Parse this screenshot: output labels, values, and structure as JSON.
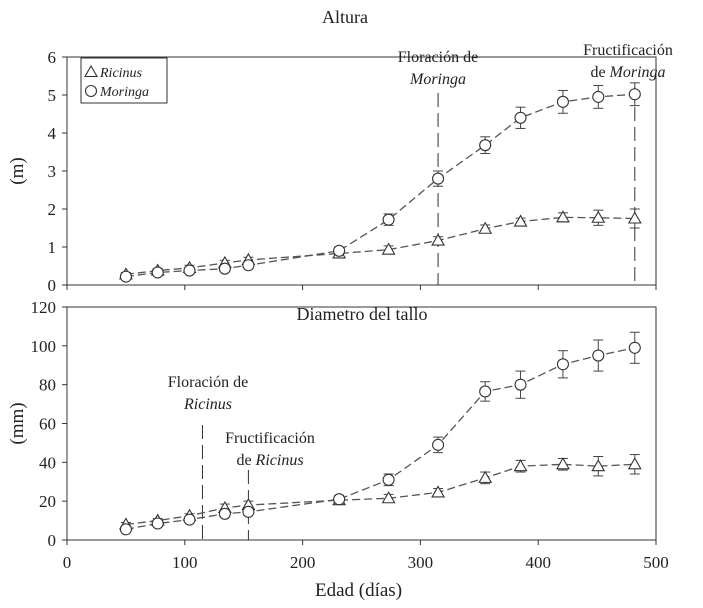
{
  "chart_data": [
    {
      "type": "line",
      "title": "Altura",
      "ylabel": "(m)",
      "xlabel": "",
      "xlim": [
        0,
        500
      ],
      "ylim": [
        0,
        6
      ],
      "xticks": [
        "0",
        "100",
        "200",
        "300",
        "400",
        "500"
      ],
      "yticks": [
        "0",
        "1",
        "2",
        "3",
        "4",
        "5",
        "6"
      ],
      "grid": false,
      "legend_position": "top-left",
      "series": [
        {
          "name": "Ricinus",
          "marker": "triangle",
          "points": [
            [
              50,
              0.28
            ],
            [
              77,
              0.38
            ],
            [
              104,
              0.45
            ],
            [
              134,
              0.58
            ],
            [
              154,
              0.66
            ],
            [
              231,
              0.83
            ],
            [
              273,
              0.93
            ],
            [
              315,
              1.17
            ],
            [
              355,
              1.48
            ],
            [
              385,
              1.67
            ],
            [
              421,
              1.78
            ],
            [
              451,
              1.77
            ],
            [
              482,
              1.75
            ]
          ],
          "error": [
            0.05,
            0.05,
            0.07,
            0.07,
            0.07,
            0.12,
            0.1,
            0.1,
            0.1,
            0.09,
            0.12,
            0.2,
            0.25
          ]
        },
        {
          "name": "Moringa",
          "marker": "circle",
          "points": [
            [
              50,
              0.22
            ],
            [
              77,
              0.33
            ],
            [
              104,
              0.38
            ],
            [
              134,
              0.43
            ],
            [
              154,
              0.52
            ],
            [
              231,
              0.9
            ],
            [
              273,
              1.72
            ],
            [
              315,
              2.8
            ],
            [
              355,
              3.68
            ],
            [
              385,
              4.4
            ],
            [
              421,
              4.82
            ],
            [
              451,
              4.95
            ],
            [
              482,
              5.02
            ]
          ],
          "error": [
            0.04,
            0.05,
            0.06,
            0.07,
            0.07,
            0.1,
            0.15,
            0.2,
            0.22,
            0.28,
            0.3,
            0.3,
            0.3
          ]
        }
      ],
      "annotations": [
        {
          "lines": [
            "Floración de",
            "Moringa"
          ],
          "x": 315
        },
        {
          "lines": [
            "Fructificación",
            "de Moringa"
          ],
          "x": 482
        }
      ]
    },
    {
      "type": "line",
      "title": "Diametro del tallo",
      "ylabel": "(mm)",
      "xlabel": "Edad (días)",
      "xlim": [
        0,
        500
      ],
      "ylim": [
        0,
        120
      ],
      "xticks": [
        "0",
        "100",
        "200",
        "300",
        "400",
        "500"
      ],
      "yticks": [
        "0",
        "20",
        "40",
        "60",
        "80",
        "100",
        "120"
      ],
      "grid": false,
      "series": [
        {
          "name": "Ricinus",
          "marker": "triangle",
          "points": [
            [
              50,
              8
            ],
            [
              77,
              10
            ],
            [
              104,
              12.5
            ],
            [
              134,
              16.5
            ],
            [
              154,
              18
            ],
            [
              231,
              20.5
            ],
            [
              273,
              21.5
            ],
            [
              315,
              24.5
            ],
            [
              355,
              32
            ],
            [
              385,
              38
            ],
            [
              421,
              39
            ],
            [
              451,
              38
            ],
            [
              482,
              39
            ]
          ],
          "error": [
            1,
            1,
            1,
            2,
            2,
            2,
            2,
            2,
            3,
            3,
            3,
            5,
            5
          ]
        },
        {
          "name": "Moringa",
          "marker": "circle",
          "points": [
            [
              50,
              5.5
            ],
            [
              77,
              8.5
            ],
            [
              104,
              10.5
            ],
            [
              134,
              13.5
            ],
            [
              154,
              14.5
            ],
            [
              231,
              21
            ],
            [
              273,
              31
            ],
            [
              315,
              49
            ],
            [
              355,
              76.5
            ],
            [
              385,
              80
            ],
            [
              421,
              90.5
            ],
            [
              451,
              95
            ],
            [
              482,
              99
            ]
          ],
          "error": [
            1,
            1,
            1,
            1.5,
            1.5,
            2,
            3,
            4,
            5,
            7,
            7,
            8,
            8
          ]
        }
      ],
      "annotations": [
        {
          "lines": [
            "Floración de",
            "Ricinus"
          ],
          "x": 115
        },
        {
          "lines": [
            "Fructificación",
            "de Ricinus"
          ],
          "x": 154
        }
      ]
    }
  ]
}
